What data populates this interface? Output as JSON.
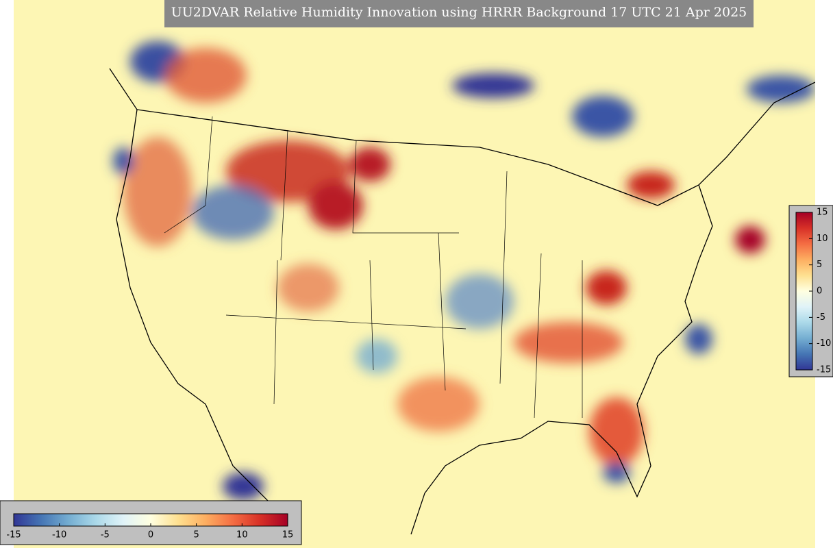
{
  "title": "UU2DVAR Relative Humidity Innovation using HRRR Background 17 UTC 21 Apr 2025",
  "colorbar": {
    "range": [
      -15,
      15
    ],
    "colors": [
      "#313695",
      "#4575b4",
      "#74add1",
      "#abd9e9",
      "#e0f3f8",
      "#ffffe0",
      "#fee090",
      "#fdae61",
      "#f46d43",
      "#d73027",
      "#a50026"
    ],
    "ticks_vertical": [
      15,
      10,
      5,
      0,
      -5,
      -10,
      -15
    ],
    "ticks_horizontal": [
      -15,
      -10,
      -5,
      0,
      5,
      10,
      15
    ]
  }
}
